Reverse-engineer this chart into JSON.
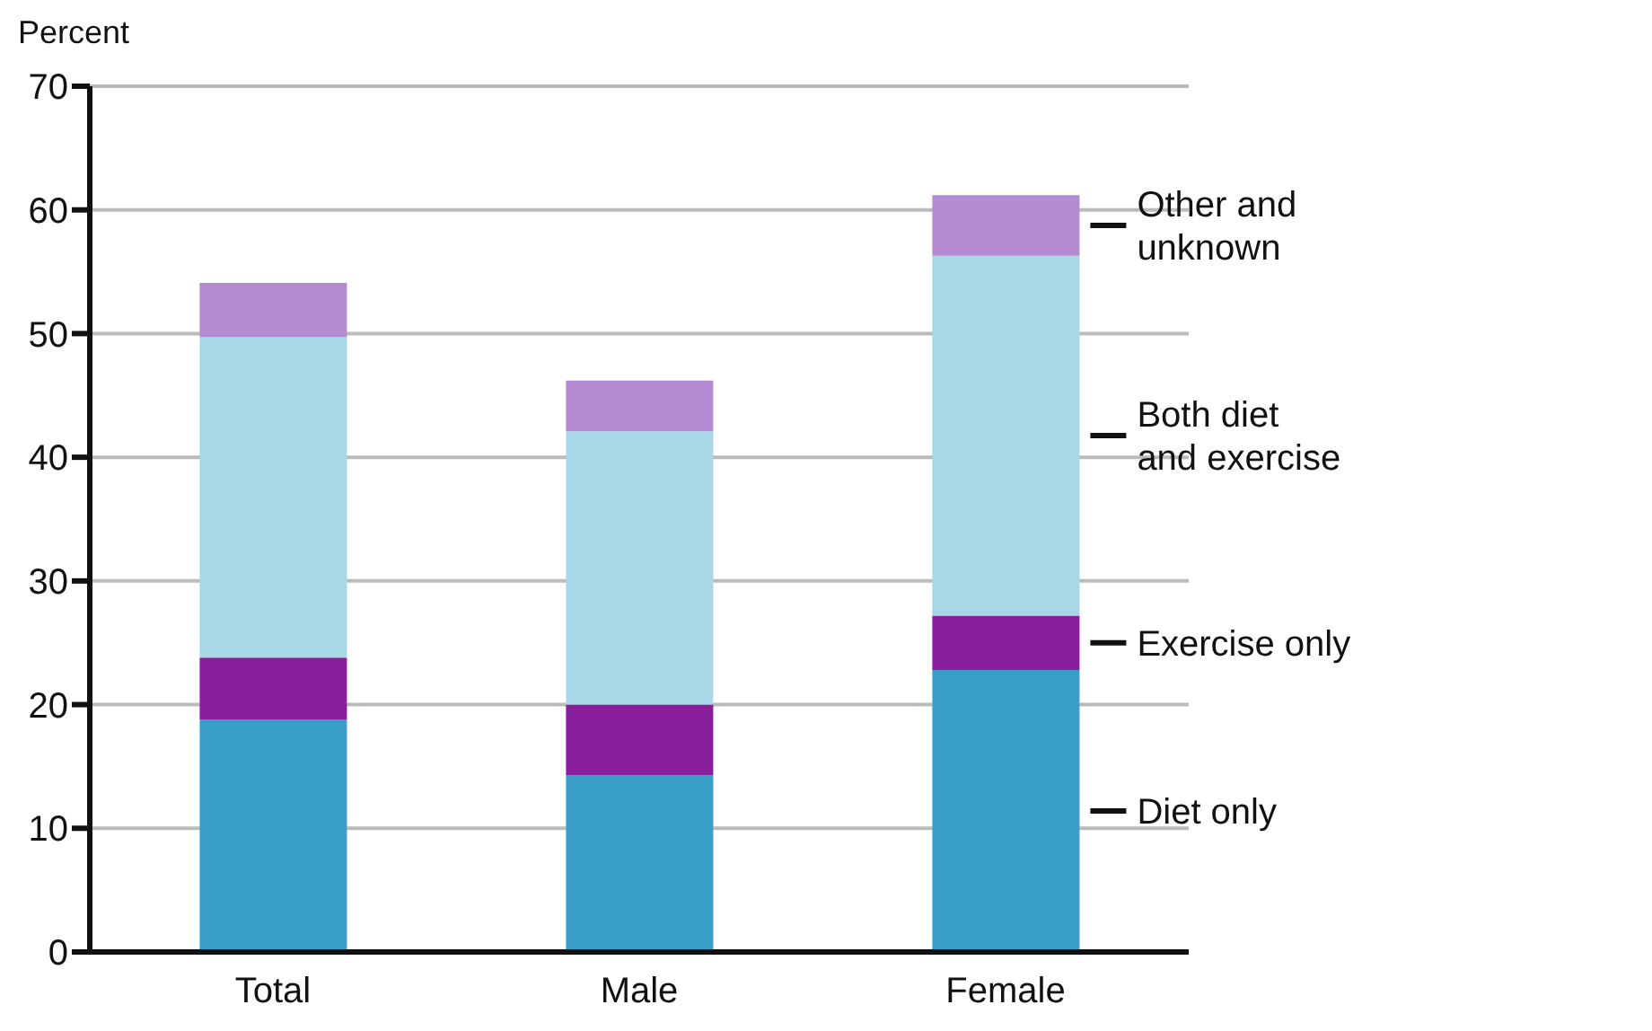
{
  "chart_data": {
    "type": "bar",
    "stacked": true,
    "ylabel": "Percent",
    "categories": [
      "Total",
      "Male",
      "Female"
    ],
    "series": [
      {
        "name": "Diet only",
        "color": "#3a9fc8",
        "values": [
          18.8,
          14.3,
          22.8
        ]
      },
      {
        "name": "Exercise only",
        "color": "#8a1f9e",
        "values": [
          5,
          5.7,
          4.4
        ]
      },
      {
        "name": "Both diet and exercise",
        "color": "#a8d8e8",
        "values": [
          25.9,
          22.1,
          29.1
        ]
      },
      {
        "name": "Other and unknown",
        "color": "#b48ad0",
        "values": [
          4.4,
          4.1,
          4.9
        ]
      }
    ],
    "ylim": [
      0,
      70
    ],
    "yticks": [
      0,
      10,
      20,
      30,
      40,
      50,
      60,
      70
    ],
    "grid": "y",
    "legend": "right"
  }
}
